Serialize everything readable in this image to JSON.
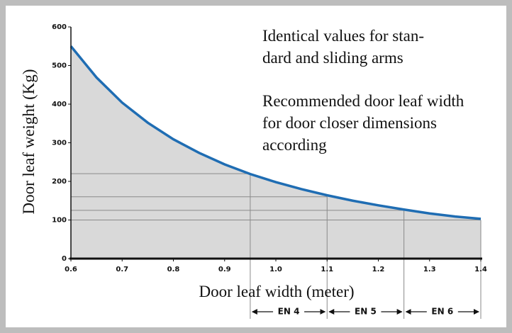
{
  "chart_data": {
    "type": "area",
    "x_label": "Door leaf width (meter)",
    "y_label": "Door leaf weight (Kg)",
    "x": [
      0.6,
      0.65,
      0.7,
      0.75,
      0.8,
      0.85,
      0.9,
      0.95,
      1.0,
      1.05,
      1.1,
      1.15,
      1.2,
      1.25,
      1.3,
      1.35,
      1.4
    ],
    "values": [
      550,
      469,
      404,
      352,
      309,
      274,
      244,
      219,
      198,
      180,
      164,
      150,
      138,
      127,
      117,
      109,
      103
    ],
    "color": "#1f6db3",
    "fill": "#d9d9d9",
    "xlim": [
      0.6,
      1.4
    ],
    "xticks": [
      0.6,
      0.7,
      0.8,
      0.9,
      {
        "value": 1,
        "label": "1.0"
      },
      1.1,
      1.2,
      1.3,
      1.4
    ],
    "ylim": [
      0,
      600
    ],
    "yticks": [
      0,
      100,
      200,
      300,
      400,
      500,
      600
    ],
    "grid": false,
    "reference_lines": [
      {
        "x": 0.95,
        "y": 220
      },
      {
        "x": 1.1,
        "y": 160
      },
      {
        "x": 1.25,
        "y": 125
      },
      {
        "x": 1.4,
        "y": 100
      }
    ],
    "ranges": [
      {
        "label": "EN 4",
        "from": 0.95,
        "to": 1.1
      },
      {
        "label": "EN 5",
        "from": 1.1,
        "to": 1.25
      },
      {
        "label": "EN 6",
        "from": 1.25,
        "to": 1.4
      }
    ],
    "annotations": [
      [
        "Identical values for stan-",
        "dard and sliding arms"
      ],
      [
        "Recommended door leaf width",
        "for door closer dimensions",
        "according"
      ]
    ]
  }
}
